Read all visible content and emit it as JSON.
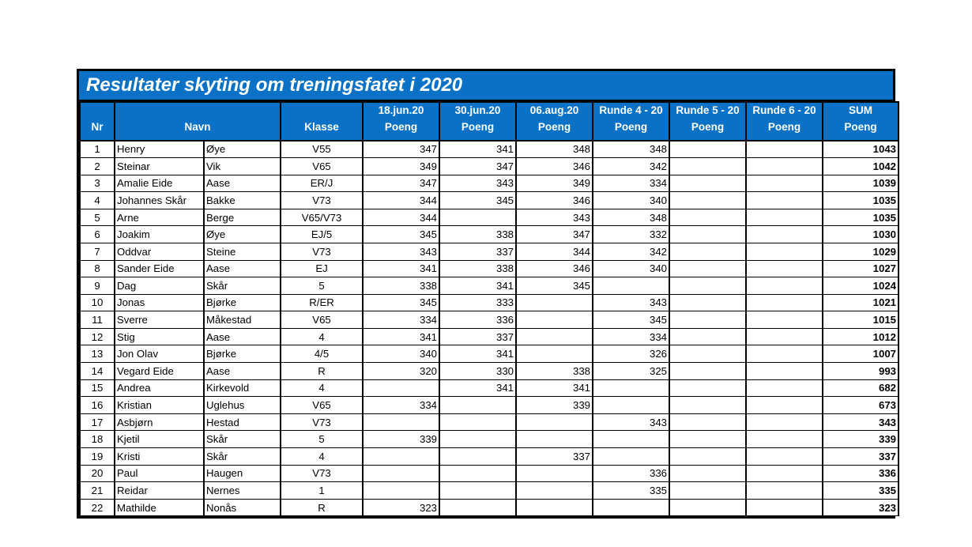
{
  "title": "Resultater skyting om treningsfatet i 2020",
  "colors": {
    "header_bg": "#0a72c6",
    "highlight": "#f3b183",
    "border": "#000000",
    "header_text": "#ffffff"
  },
  "table": {
    "headers": {
      "nr": "Nr",
      "navn": "Navn",
      "klasse": "Klasse",
      "rounds": [
        {
          "line1": "18.jun.20",
          "line2": "Poeng"
        },
        {
          "line1": "30.jun.20",
          "line2": "Poeng"
        },
        {
          "line1": "06.aug.20",
          "line2": "Poeng"
        },
        {
          "line1": "Runde 4 - 20",
          "line2": "Poeng"
        },
        {
          "line1": "Runde 5 - 20",
          "line2": "Poeng"
        },
        {
          "line1": "Runde 6 - 20",
          "line2": "Poeng"
        }
      ],
      "sum": {
        "line1": "SUM",
        "line2": "Poeng"
      }
    },
    "rows": [
      {
        "nr": "1",
        "first": "Henry",
        "last": "Øye",
        "klasse": "V55",
        "scores": [
          "347",
          "341",
          "348",
          "348",
          "",
          ""
        ],
        "highlight": [
          1
        ],
        "sum": "1043"
      },
      {
        "nr": "2",
        "first": "Steinar",
        "last": "Vik",
        "klasse": "V65",
        "scores": [
          "349",
          "347",
          "346",
          "342",
          "",
          ""
        ],
        "highlight": [
          3
        ],
        "sum": "1042"
      },
      {
        "nr": "3",
        "first": "Amalie Eide",
        "last": "Aase",
        "klasse": "ER/J",
        "scores": [
          "347",
          "343",
          "349",
          "334",
          "",
          ""
        ],
        "highlight": [
          3
        ],
        "sum": "1039"
      },
      {
        "nr": "4",
        "first": "Johannes Skår",
        "last": "Bakke",
        "klasse": "V73",
        "scores": [
          "344",
          "345",
          "346",
          "340",
          "",
          ""
        ],
        "highlight": [
          3
        ],
        "sum": "1035"
      },
      {
        "nr": "5",
        "first": "Arne",
        "last": "Berge",
        "klasse": "V65/V73",
        "scores": [
          "344",
          "",
          "343",
          "348",
          "",
          ""
        ],
        "highlight": [],
        "sum": "1035"
      },
      {
        "nr": "6",
        "first": "Joakim",
        "last": "Øye",
        "klasse": "EJ/5",
        "scores": [
          "345",
          "338",
          "347",
          "332",
          "",
          ""
        ],
        "highlight": [
          3
        ],
        "sum": "1030"
      },
      {
        "nr": "7",
        "first": "Oddvar",
        "last": "Steine",
        "klasse": "V73",
        "scores": [
          "343",
          "337",
          "344",
          "342",
          "",
          ""
        ],
        "highlight": [
          1
        ],
        "sum": "1029"
      },
      {
        "nr": "8",
        "first": "Sander Eide",
        "last": "Aase",
        "klasse": "EJ",
        "scores": [
          "341",
          "338",
          "346",
          "340",
          "",
          ""
        ],
        "highlight": [
          1
        ],
        "sum": "1027"
      },
      {
        "nr": "9",
        "first": "Dag",
        "last": "Skår",
        "klasse": "5",
        "scores": [
          "338",
          "341",
          "345",
          "",
          "",
          ""
        ],
        "highlight": [],
        "sum": "1024"
      },
      {
        "nr": "10",
        "first": "Jonas",
        "last": "Bjørke",
        "klasse": "R/ER",
        "scores": [
          "345",
          "333",
          "",
          "343",
          "",
          ""
        ],
        "highlight": [],
        "sum": "1021"
      },
      {
        "nr": "11",
        "first": "Sverre",
        "last": "Måkestad",
        "klasse": "V65",
        "scores": [
          "334",
          "336",
          "",
          "345",
          "",
          ""
        ],
        "highlight": [],
        "sum": "1015"
      },
      {
        "nr": "12",
        "first": "Stig",
        "last": "Aase",
        "klasse": "4",
        "scores": [
          "341",
          "337",
          "",
          "334",
          "",
          ""
        ],
        "highlight": [],
        "sum": "1012"
      },
      {
        "nr": "13",
        "first": "Jon Olav",
        "last": "Bjørke",
        "klasse": "4/5",
        "scores": [
          "340",
          "341",
          "",
          "326",
          "",
          ""
        ],
        "highlight": [],
        "sum": "1007"
      },
      {
        "nr": "14",
        "first": "Vegard Eide",
        "last": "Aase",
        "klasse": "R",
        "scores": [
          "320",
          "330",
          "338",
          "325",
          "",
          ""
        ],
        "highlight": [
          0
        ],
        "sum": "993"
      },
      {
        "nr": "15",
        "first": "Andrea",
        "last": "Kirkevold",
        "klasse": "4",
        "scores": [
          "",
          "341",
          "341",
          "",
          "",
          ""
        ],
        "highlight": [],
        "sum": "682"
      },
      {
        "nr": "16",
        "first": "Kristian",
        "last": "Uglehus",
        "klasse": "V65",
        "scores": [
          "334",
          "",
          "339",
          "",
          "",
          ""
        ],
        "highlight": [],
        "sum": "673"
      },
      {
        "nr": "17",
        "first": "Asbjørn",
        "last": "Hestad",
        "klasse": "V73",
        "scores": [
          "",
          "",
          "",
          "343",
          "",
          ""
        ],
        "highlight": [],
        "sum": "343"
      },
      {
        "nr": "18",
        "first": "Kjetil",
        "last": "Skår",
        "klasse": "5",
        "scores": [
          "339",
          "",
          "",
          "",
          "",
          ""
        ],
        "highlight": [],
        "sum": "339"
      },
      {
        "nr": "19",
        "first": "Kristi",
        "last": "Skår",
        "klasse": "4",
        "scores": [
          "",
          "",
          "337",
          "",
          "",
          ""
        ],
        "highlight": [],
        "sum": "337"
      },
      {
        "nr": "20",
        "first": "Paul",
        "last": "Haugen",
        "klasse": "V73",
        "scores": [
          "",
          "",
          "",
          "336",
          "",
          ""
        ],
        "highlight": [],
        "sum": "336"
      },
      {
        "nr": "21",
        "first": "Reidar",
        "last": "Nernes",
        "klasse": "1",
        "scores": [
          "",
          "",
          "",
          "335",
          "",
          ""
        ],
        "highlight": [],
        "sum": "335"
      },
      {
        "nr": "22",
        "first": "Mathilde",
        "last": "Nonås",
        "klasse": "R",
        "scores": [
          "323",
          "",
          "",
          "",
          "",
          ""
        ],
        "highlight": [],
        "sum": "323"
      }
    ]
  }
}
